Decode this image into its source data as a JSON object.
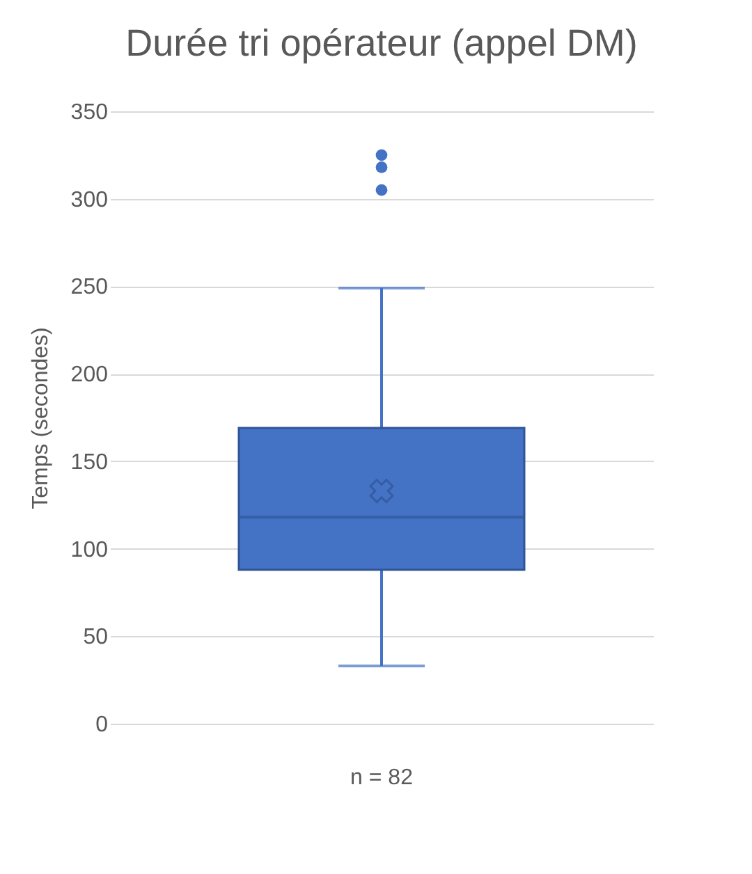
{
  "chart_data": {
    "type": "box",
    "title": "Durée tri opérateur (appel DM)",
    "ylabel": "Temps (secondes)",
    "categories": [
      "n = 82"
    ],
    "color": "#4472c4",
    "boxes": [
      {
        "low": 33,
        "q1": 88,
        "median": 118,
        "q3": 169,
        "high": 249,
        "mean": 133,
        "outliers": [
          305,
          318,
          325
        ]
      }
    ],
    "ylim": [
      0,
      350
    ],
    "yticks": [
      0,
      50,
      100,
      150,
      200,
      250,
      300,
      350
    ],
    "grid": "y"
  }
}
